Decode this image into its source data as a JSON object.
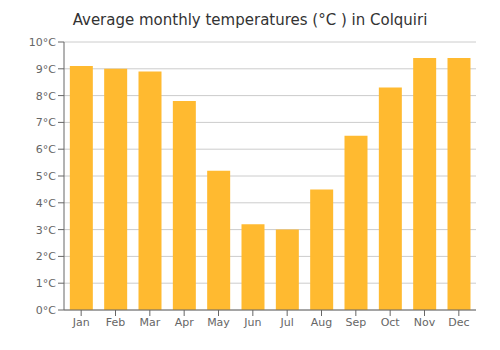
{
  "chart_data": {
    "type": "bar",
    "title": "Average monthly temperatures (°C ) in Colquiri",
    "categories": [
      "Jan",
      "Feb",
      "Mar",
      "Apr",
      "May",
      "Jun",
      "Jul",
      "Aug",
      "Sep",
      "Oct",
      "Nov",
      "Dec"
    ],
    "values": [
      9.1,
      9.0,
      8.9,
      7.8,
      5.2,
      3.2,
      3.0,
      4.5,
      6.5,
      8.3,
      9.4,
      9.4
    ],
    "color": "#FFBA30",
    "ylim": [
      0,
      10
    ],
    "yticks": [
      {
        "value": 0,
        "label": "0°C"
      },
      {
        "value": 1,
        "label": "1°C"
      },
      {
        "value": 2,
        "label": "2°C"
      },
      {
        "value": 3,
        "label": "3°C"
      },
      {
        "value": 4,
        "label": "4°C"
      },
      {
        "value": 5,
        "label": "5°C"
      },
      {
        "value": 6,
        "label": "6°C"
      },
      {
        "value": 7,
        "label": "7°C"
      },
      {
        "value": 8,
        "label": "8°C"
      },
      {
        "value": 9,
        "label": "9°C"
      },
      {
        "value": 10,
        "label": "10°C"
      }
    ],
    "grid": true
  }
}
